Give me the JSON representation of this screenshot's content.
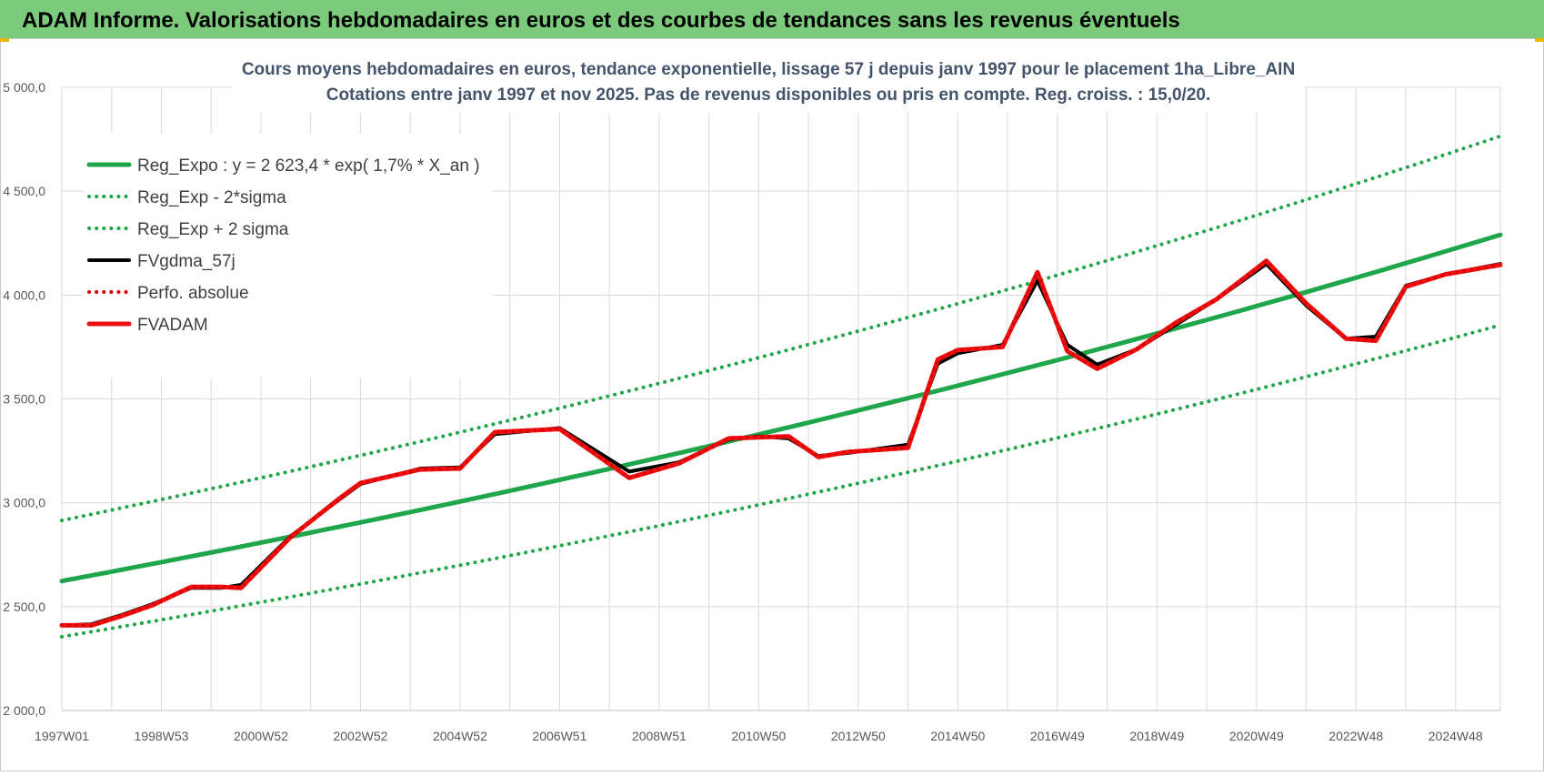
{
  "page": {
    "title": "ADAM Informe. Valorisations hebdomadaires en euros et des courbes de tendances sans les revenus éventuels"
  },
  "colors": {
    "header_bg": "#7ccb7c",
    "reg_expo": "#1fa64a",
    "reg_band": "#1fa64a",
    "fvgdma": "#000000",
    "perfo": "#e00000",
    "fvadam": "#ee1111",
    "grid": "#d9d9d9"
  },
  "chart_data": {
    "type": "line",
    "title": "Cours moyens hebdomadaires en euros, tendance exponentielle, lissage 57 j depuis janv 1997 pour le placement 1ha_Libre_AIN",
    "subtitle": "Cotations entre janv 1997 et nov 2025. Pas de revenus disponibles ou pris en compte. Reg. croiss. : 15,0/20.",
    "xlabel": "",
    "ylabel": "",
    "ylim": [
      2000,
      5000
    ],
    "yticks": [
      2000,
      2500,
      3000,
      3500,
      4000,
      4500,
      5000
    ],
    "ytick_labels": [
      "2 000,0",
      "2 500,0",
      "3 000,0",
      "3 500,0",
      "4 000,0",
      "4 500,0",
      "5 000,0"
    ],
    "xlim": [
      1997.0,
      2025.9
    ],
    "xtick_positions": [
      1997.0,
      1999.0,
      2001.0,
      2003.0,
      2005.0,
      2007.0,
      2009.0,
      2011.0,
      2013.0,
      2015.0,
      2017.0,
      2019.0,
      2021.0,
      2023.0,
      2025.0
    ],
    "xtick_labels": [
      "1997W01",
      "1998W53",
      "2000W52",
      "2002W52",
      "2004W52",
      "2006W51",
      "2008W51",
      "2010W50",
      "2012W50",
      "2014W50",
      "2016W49",
      "2018W49",
      "2020W49",
      "2022W48",
      "2024W48"
    ],
    "grid": true,
    "legend_position": "top-left",
    "series": [
      {
        "name": "Reg_Expo : y = 2 623,4 * exp( 1,7% *  X_an )",
        "style": "solid-thick",
        "color": "#1fa64a",
        "x": [
          1997.0,
          2025.9
        ],
        "y": [
          2623.4,
          4290
        ]
      },
      {
        "name": "Reg_Exp - 2*sigma",
        "style": "dotted",
        "color": "#1fa64a",
        "x": [
          1997.0,
          2025.9
        ],
        "y": [
          2355,
          3855
        ]
      },
      {
        "name": "Reg_Exp + 2 sigma",
        "style": "dotted",
        "color": "#1fa64a",
        "x": [
          1997.0,
          2025.9
        ],
        "y": [
          2915,
          4765
        ]
      },
      {
        "name": "FVgdma_57j",
        "style": "solid",
        "color": "#000000",
        "x": [
          1997.0,
          1997.6,
          1998.2,
          1998.8,
          1999.6,
          2000.2,
          2000.6,
          2001.6,
          2002.6,
          2003.0,
          2004.2,
          2005.0,
          2005.7,
          2007.0,
          2008.4,
          2009.4,
          2010.4,
          2011.0,
          2011.6,
          2012.2,
          2012.8,
          2014.0,
          2014.6,
          2015.0,
          2015.9,
          2016.6,
          2017.2,
          2017.8,
          2018.6,
          2019.4,
          2020.2,
          2021.2,
          2022.0,
          2022.8,
          2023.4,
          2024.0,
          2024.8,
          2025.9
        ],
        "y": [
          2410,
          2415,
          2460,
          2510,
          2590,
          2590,
          2605,
          2840,
          3020,
          3090,
          3165,
          3170,
          3330,
          3360,
          3150,
          3195,
          3305,
          3320,
          3310,
          3225,
          3240,
          3280,
          3670,
          3720,
          3760,
          4070,
          3760,
          3665,
          3740,
          3860,
          3980,
          4150,
          3950,
          3790,
          3800,
          4045,
          4100,
          4150
        ]
      },
      {
        "name": "Perfo. absolue",
        "style": "dotted",
        "color": "#e00000",
        "x": [
          1997.0,
          1997.6,
          1998.2,
          1998.8,
          1999.6,
          2000.2,
          2000.6,
          2001.6,
          2002.6,
          2003.0,
          2004.2,
          2005.0,
          2005.7,
          2007.0,
          2008.4,
          2009.4,
          2010.4,
          2011.0,
          2011.6,
          2012.2,
          2012.8,
          2014.0,
          2014.6,
          2015.0,
          2015.9,
          2016.6,
          2017.2,
          2017.8,
          2018.6,
          2019.4,
          2020.2,
          2021.2,
          2022.0,
          2022.8,
          2023.4,
          2024.0,
          2024.8,
          2025.9
        ],
        "y": [
          2410,
          2410,
          2455,
          2505,
          2595,
          2595,
          2590,
          2835,
          3025,
          3095,
          3160,
          3165,
          3340,
          3355,
          3120,
          3190,
          3310,
          3315,
          3320,
          3220,
          3245,
          3265,
          3690,
          3735,
          3750,
          4110,
          3730,
          3645,
          3740,
          3870,
          3980,
          4165,
          3960,
          3790,
          3780,
          4040,
          4100,
          4145
        ]
      },
      {
        "name": "FVADAM",
        "style": "solid-thick",
        "color": "#ee1111",
        "x": [
          1997.0,
          1997.6,
          1998.2,
          1998.8,
          1999.6,
          2000.2,
          2000.6,
          2001.6,
          2002.6,
          2003.0,
          2004.2,
          2005.0,
          2005.7,
          2007.0,
          2008.4,
          2009.4,
          2010.4,
          2011.0,
          2011.6,
          2012.2,
          2012.8,
          2014.0,
          2014.6,
          2015.0,
          2015.9,
          2016.6,
          2017.2,
          2017.8,
          2018.6,
          2019.4,
          2020.2,
          2021.2,
          2022.0,
          2022.8,
          2023.4,
          2024.0,
          2024.8,
          2025.9
        ],
        "y": [
          2410,
          2410,
          2455,
          2505,
          2595,
          2595,
          2590,
          2835,
          3025,
          3095,
          3160,
          3165,
          3340,
          3355,
          3120,
          3190,
          3310,
          3315,
          3320,
          3220,
          3245,
          3265,
          3690,
          3735,
          3750,
          4110,
          3730,
          3645,
          3740,
          3870,
          3980,
          4165,
          3960,
          3790,
          3780,
          4040,
          4100,
          4145
        ]
      }
    ]
  }
}
